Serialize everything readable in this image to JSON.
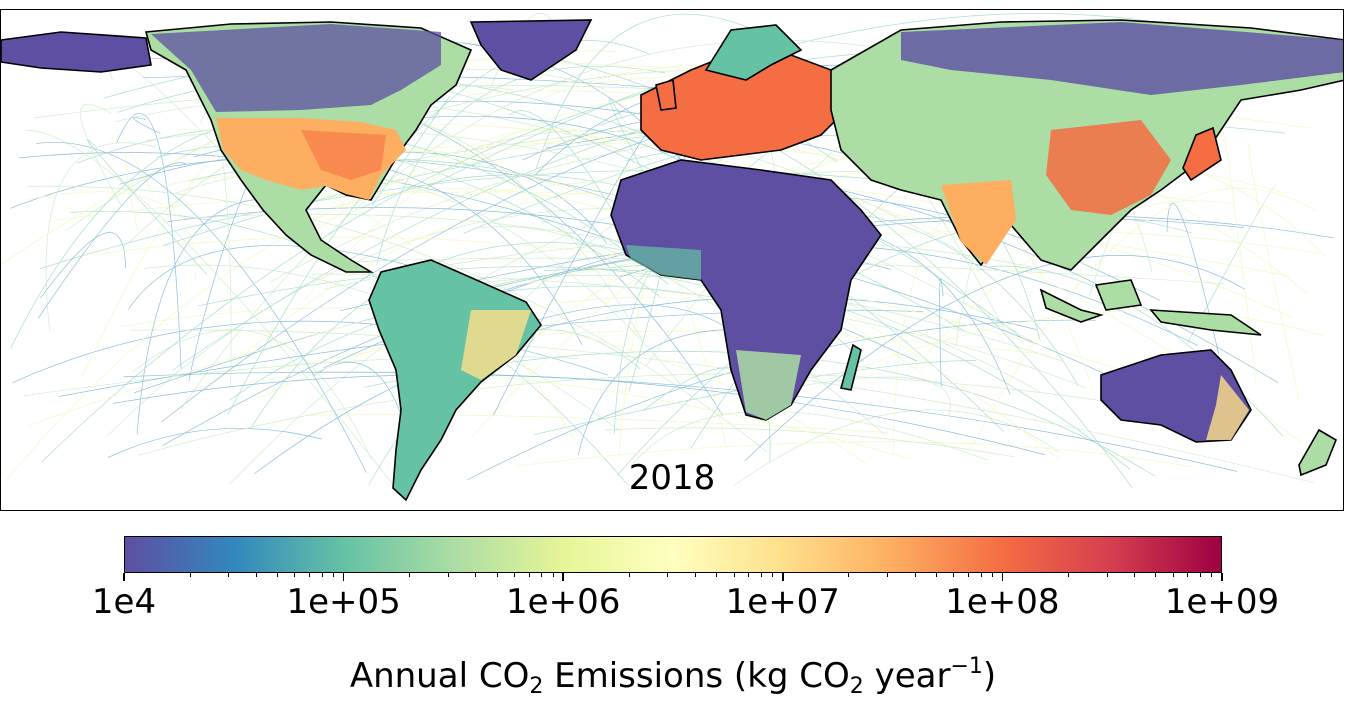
{
  "map": {
    "year": "2018",
    "content": "global gridded annual CO2 emissions with shipping and aviation tracks"
  },
  "colorbar": {
    "scale": "log",
    "range": [
      10000,
      1000000000
    ],
    "colormap": "Spectral_r",
    "colors": [
      "#5e4fa2",
      "#3288bd",
      "#66c2a5",
      "#abdda4",
      "#e6f598",
      "#ffffbf",
      "#fee08b",
      "#fdae61",
      "#f46d43",
      "#d53e4f",
      "#9e0142"
    ],
    "ticks": [
      {
        "value": 10000,
        "label": "1e4"
      },
      {
        "value": 100000,
        "label": "1e+05"
      },
      {
        "value": 1000000,
        "label": "1e+06"
      },
      {
        "value": 10000000,
        "label": "1e+07"
      },
      {
        "value": 100000000,
        "label": "1e+08"
      },
      {
        "value": 1000000000,
        "label": "1e+09"
      }
    ],
    "label_prefix": "Annual CO",
    "label_sub1": "2",
    "label_middle": " Emissions (kg CO",
    "label_sub2": "2",
    "label_year": " year",
    "label_sup": "−1",
    "label_suffix": ")"
  }
}
